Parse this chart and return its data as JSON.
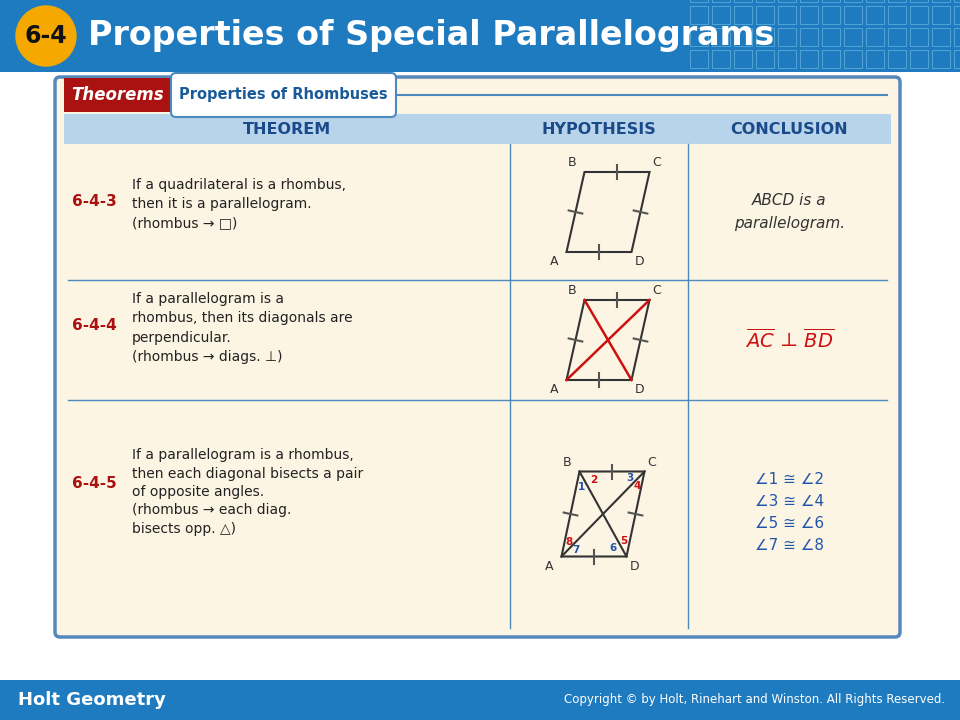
{
  "title": "Properties of Special Parallelograms",
  "badge_text": "6-4",
  "badge_color": "#f5a800",
  "header_bg": "#1e7bbf",
  "header_text_color": "#ffffff",
  "theorems_label": "Theorems",
  "theorems_label_bg": "#aa1111",
  "tab_label": "Properties of Rhombuses",
  "tab_border": "#4a8abf",
  "col_headers": [
    "THEOREM",
    "HYPOTHESIS",
    "CONCLUSION"
  ],
  "col_header_bg": "#b8d4ea",
  "col_header_text": "#1a4a8a",
  "table_bg": "#fdf5e4",
  "table_border": "#5588bb",
  "theorem_num_color": "#aa1111",
  "theorem_text_color": "#222222",
  "red_color": "#cc1111",
  "blue_color": "#2255aa",
  "dark_text": "#333333",
  "footer_bg": "#1e7bbf",
  "footer_left": "Holt Geometry",
  "footer_right": "Copyright © by Holt, Rinehart and Winston. All Rights Reserved.",
  "rows": [
    {
      "num": "6-4-3",
      "text": "If a quadrilateral is a rhombus,\nthen it is a parallelogram.\n(rhombus → □)",
      "conclusion": "ABCD is a\nparallelogram."
    },
    {
      "num": "6-4-4",
      "text": "If a parallelogram is a\nrhombus, then its diagonals are\nperpendicular.\n(rhombus → diags. ⊥)",
      "conclusion_ac": "AC",
      "conclusion_bd": "BD",
      "conclusion_perp": "⊥"
    },
    {
      "num": "6-4-5",
      "text": "If a parallelogram is a rhombus,\nthen each diagonal bisects a pair\nof opposite angles.\n(rhombus → each diag.\nbisects opp. △)",
      "conclusion": [
        "∠1 ≅ ∠2",
        "∠3 ≅ ∠4",
        "∠5 ≅ ∠6",
        "∠7 ≅ ∠8"
      ]
    }
  ]
}
